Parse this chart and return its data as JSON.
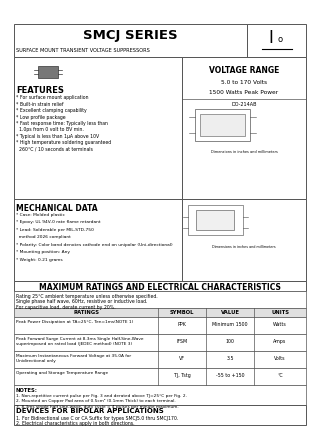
{
  "title": "SMCJ SERIES",
  "subtitle": "SURFACE MOUNT TRANSIENT VOLTAGE SUPPRESSORS",
  "voltage_range_title": "VOLTAGE RANGE",
  "voltage_range": "5.0 to 170 Volts",
  "peak_power": "1500 Watts Peak Power",
  "package": "DO-214AB",
  "features_title": "FEATURES",
  "features": [
    "* For surface mount application",
    "* Built-in strain relief",
    "* Excellent clamping capability",
    "* Low profile package",
    "* Fast response time: Typically less than",
    "  1.0ps from 0 volt to BV min.",
    "* Typical is less than 1μA above 10V",
    "* High temperature soldering guaranteed",
    "  260°C / 10 seconds at terminals"
  ],
  "mech_title": "MECHANICAL DATA",
  "mech_data": [
    "* Case: Molded plastic",
    "* Epoxy: UL 94V-0 rate flame retardant",
    "* Lead: Solderable per MIL-STD-750",
    "  method 2026 compliant",
    "* Polarity: Color band denotes cathode end on unipolar (Uni-directional)",
    "* Mounting position: Any",
    "* Weight: 0.21 grams"
  ],
  "max_ratings_title": "MAXIMUM RATINGS AND ELECTRICAL CHARACTERISTICS",
  "ratings_notes": [
    "Rating 25°C ambient temperature unless otherwise specified.",
    "Single phase half wave, 60Hz, resistive or inductive load.",
    "For capacitive load, derate current by 20%."
  ],
  "table_col_header": "RATINGS",
  "table_headers": [
    "RATINGS",
    "SYMBOL",
    "VALUE",
    "UNITS"
  ],
  "table_rows": [
    [
      "Peak Power Dissipation at TA=25°C, Ten=1ms(NOTE 1)",
      "PPK",
      "Minimum 1500",
      "Watts"
    ],
    [
      "Peak Forward Surge Current at 8.3ms Single Half-Sine-Wave\nsuperimposed on rated load (JEDEC method) (NOTE 3)",
      "IFSM",
      "100",
      "Amps"
    ],
    [
      "Maximum Instantaneous Forward Voltage at 35.0A for\nUnidirectional only",
      "VF",
      "3.5",
      "Volts"
    ],
    [
      "Operating and Storage Temperature Range",
      "TJ, Tstg",
      "-55 to +150",
      "°C"
    ]
  ],
  "notes_title": "NOTES:",
  "notes": [
    "1. Non-repetitive current pulse per Fig. 3 and derated above TJ=25°C per Fig. 2.",
    "2. Mounted on Copper Pad area of 0.5cm² (0.1mm Thick) to each terminal.",
    "3. 8.3ms single half sine-wave, duty cycle = 4 pulses per minute maximum."
  ],
  "bipolar_title": "DEVICES FOR BIPOLAR APPLICATIONS",
  "bipolar_text": [
    "1. For Bidirectional use C or CA Suffix for types SMCJ5.0 thru SMCJ170.",
    "2. Electrical characteristics apply in both directions."
  ]
}
